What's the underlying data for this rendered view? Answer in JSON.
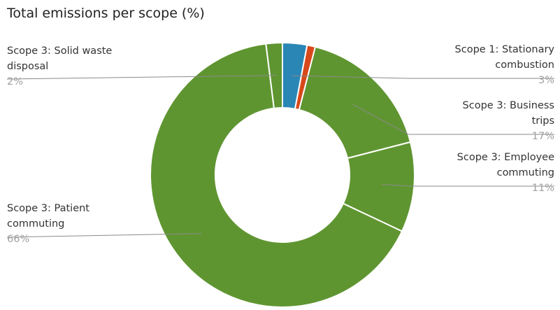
{
  "chart_title": "Total emissions per scope (%)",
  "chart_data": {
    "type": "pie",
    "title": "Total emissions per scope (%)",
    "donut": true,
    "slices": [
      {
        "label_lines": [
          "Scope 1: Stationary",
          "combustion"
        ],
        "value_label": "3%",
        "value": 3,
        "color": "#2a86b5"
      },
      {
        "label_lines": [],
        "value_label": "",
        "value": 1,
        "color": "#d8481a"
      },
      {
        "label_lines": [
          "Scope 3: Business",
          "trips"
        ],
        "value_label": "17%",
        "value": 17,
        "color": "#5f9531"
      },
      {
        "label_lines": [
          "Scope 3: Employee",
          "commuting"
        ],
        "value_label": "11%",
        "value": 11,
        "color": "#5f9531"
      },
      {
        "label_lines": [
          "Scope 3: Patient",
          "commuting"
        ],
        "value_label": "66%",
        "value": 66,
        "color": "#5f9531"
      },
      {
        "label_lines": [
          "Scope 3: Solid waste",
          "disposal"
        ],
        "value_label": "2%",
        "value": 2,
        "color": "#5f9531"
      }
    ],
    "legend": "none"
  }
}
